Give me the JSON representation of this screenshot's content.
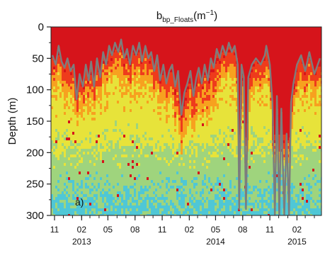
{
  "chart_data": {
    "type": "heatmap",
    "title": {
      "main": "b",
      "subscript": "bp_Floats",
      "unit_open": "(m",
      "unit_exp": "−1",
      "unit_close": ")"
    },
    "ylabel": "Depth (m)",
    "xlabel": "",
    "ylim": [
      300,
      0
    ],
    "y_inverted": true,
    "xlim": [
      "2012-10-20",
      "2015-04-25"
    ],
    "y_ticks": [
      0,
      50,
      100,
      150,
      200,
      250,
      300
    ],
    "x_ticks": [
      {
        "label": "11",
        "date": "2012-11-01"
      },
      {
        "label": "02",
        "date": "2013-02-01"
      },
      {
        "label": "05",
        "date": "2013-05-01"
      },
      {
        "label": "08",
        "date": "2013-08-01"
      },
      {
        "label": "11",
        "date": "2013-11-01"
      },
      {
        "label": "02",
        "date": "2014-02-01"
      },
      {
        "label": "05",
        "date": "2014-05-01"
      },
      {
        "label": "08",
        "date": "2014-08-01"
      },
      {
        "label": "11",
        "date": "2014-11-01"
      },
      {
        "label": "02",
        "date": "2015-02-01"
      }
    ],
    "year_labels": [
      {
        "label": "2013",
        "date": "2013-02-01"
      },
      {
        "label": "2014",
        "date": "2014-05-01"
      },
      {
        "label": "2015",
        "date": "2015-02-01"
      }
    ],
    "panel_label": "a)",
    "colormap": [
      "#4fc7d6",
      "#9fd47d",
      "#e7e33a",
      "#f7a11f",
      "#ee3b1c",
      "#d6141b"
    ],
    "grid": false,
    "legend": "none",
    "mixed_layer_depth": {
      "color": "#7d7d7d",
      "points": [
        [
          "2012-10-25",
          45
        ],
        [
          "2012-11-05",
          60
        ],
        [
          "2012-11-15",
          30
        ],
        [
          "2012-11-25",
          55
        ],
        [
          "2012-12-05",
          65
        ],
        [
          "2012-12-15",
          50
        ],
        [
          "2012-12-25",
          70
        ],
        [
          "2013-01-05",
          60
        ],
        [
          "2013-01-15",
          115
        ],
        [
          "2013-01-25",
          75
        ],
        [
          "2013-02-05",
          95
        ],
        [
          "2013-02-15",
          60
        ],
        [
          "2013-02-25",
          85
        ],
        [
          "2013-03-05",
          55
        ],
        [
          "2013-03-15",
          95
        ],
        [
          "2013-03-25",
          50
        ],
        [
          "2013-04-05",
          80
        ],
        [
          "2013-04-15",
          40
        ],
        [
          "2013-04-25",
          60
        ],
        [
          "2013-05-05",
          30
        ],
        [
          "2013-05-15",
          45
        ],
        [
          "2013-05-25",
          25
        ],
        [
          "2013-06-05",
          40
        ],
        [
          "2013-06-15",
          20
        ],
        [
          "2013-06-25",
          50
        ],
        [
          "2013-07-05",
          35
        ],
        [
          "2013-07-15",
          60
        ],
        [
          "2013-07-25",
          30
        ],
        [
          "2013-08-05",
          45
        ],
        [
          "2013-08-15",
          25
        ],
        [
          "2013-08-25",
          55
        ],
        [
          "2013-09-05",
          30
        ],
        [
          "2013-09-15",
          50
        ],
        [
          "2013-09-25",
          40
        ],
        [
          "2013-10-05",
          70
        ],
        [
          "2013-10-15",
          45
        ],
        [
          "2013-10-25",
          85
        ],
        [
          "2013-11-05",
          60
        ],
        [
          "2013-11-15",
          90
        ],
        [
          "2013-11-25",
          70
        ],
        [
          "2013-12-05",
          60
        ],
        [
          "2013-12-15",
          95
        ],
        [
          "2013-12-25",
          70
        ],
        [
          "2014-01-05",
          140
        ],
        [
          "2014-01-15",
          105
        ],
        [
          "2014-01-25",
          90
        ],
        [
          "2014-02-05",
          70
        ],
        [
          "2014-02-15",
          110
        ],
        [
          "2014-02-25",
          80
        ],
        [
          "2014-03-05",
          65
        ],
        [
          "2014-03-15",
          90
        ],
        [
          "2014-03-25",
          60
        ],
        [
          "2014-04-05",
          85
        ],
        [
          "2014-04-15",
          50
        ],
        [
          "2014-04-25",
          65
        ],
        [
          "2014-05-05",
          35
        ],
        [
          "2014-05-15",
          50
        ],
        [
          "2014-05-25",
          30
        ],
        [
          "2014-06-05",
          45
        ],
        [
          "2014-06-15",
          25
        ],
        [
          "2014-06-25",
          40
        ],
        [
          "2014-07-05",
          30
        ],
        [
          "2014-07-15",
          60
        ],
        [
          "2014-07-20",
          290
        ],
        [
          "2014-07-28",
          60
        ],
        [
          "2014-08-05",
          80
        ],
        [
          "2014-08-12",
          290
        ],
        [
          "2014-08-20",
          80
        ],
        [
          "2014-09-01",
          60
        ],
        [
          "2014-09-15",
          50
        ],
        [
          "2014-10-01",
          60
        ],
        [
          "2014-10-15",
          45
        ],
        [
          "2014-10-20",
          30
        ],
        [
          "2014-11-01",
          60
        ],
        [
          "2014-11-10",
          120
        ],
        [
          "2014-11-18",
          300
        ],
        [
          "2014-11-25",
          110
        ],
        [
          "2014-12-03",
          300
        ],
        [
          "2014-12-10",
          130
        ],
        [
          "2014-12-20",
          300
        ],
        [
          "2014-12-28",
          170
        ],
        [
          "2015-01-05",
          300
        ],
        [
          "2015-01-12",
          120
        ],
        [
          "2015-01-20",
          90
        ],
        [
          "2015-02-01",
          60
        ],
        [
          "2015-02-15",
          45
        ],
        [
          "2015-03-01",
          70
        ],
        [
          "2015-03-15",
          40
        ],
        [
          "2015-04-01",
          75
        ],
        [
          "2015-04-20",
          50
        ]
      ]
    }
  }
}
